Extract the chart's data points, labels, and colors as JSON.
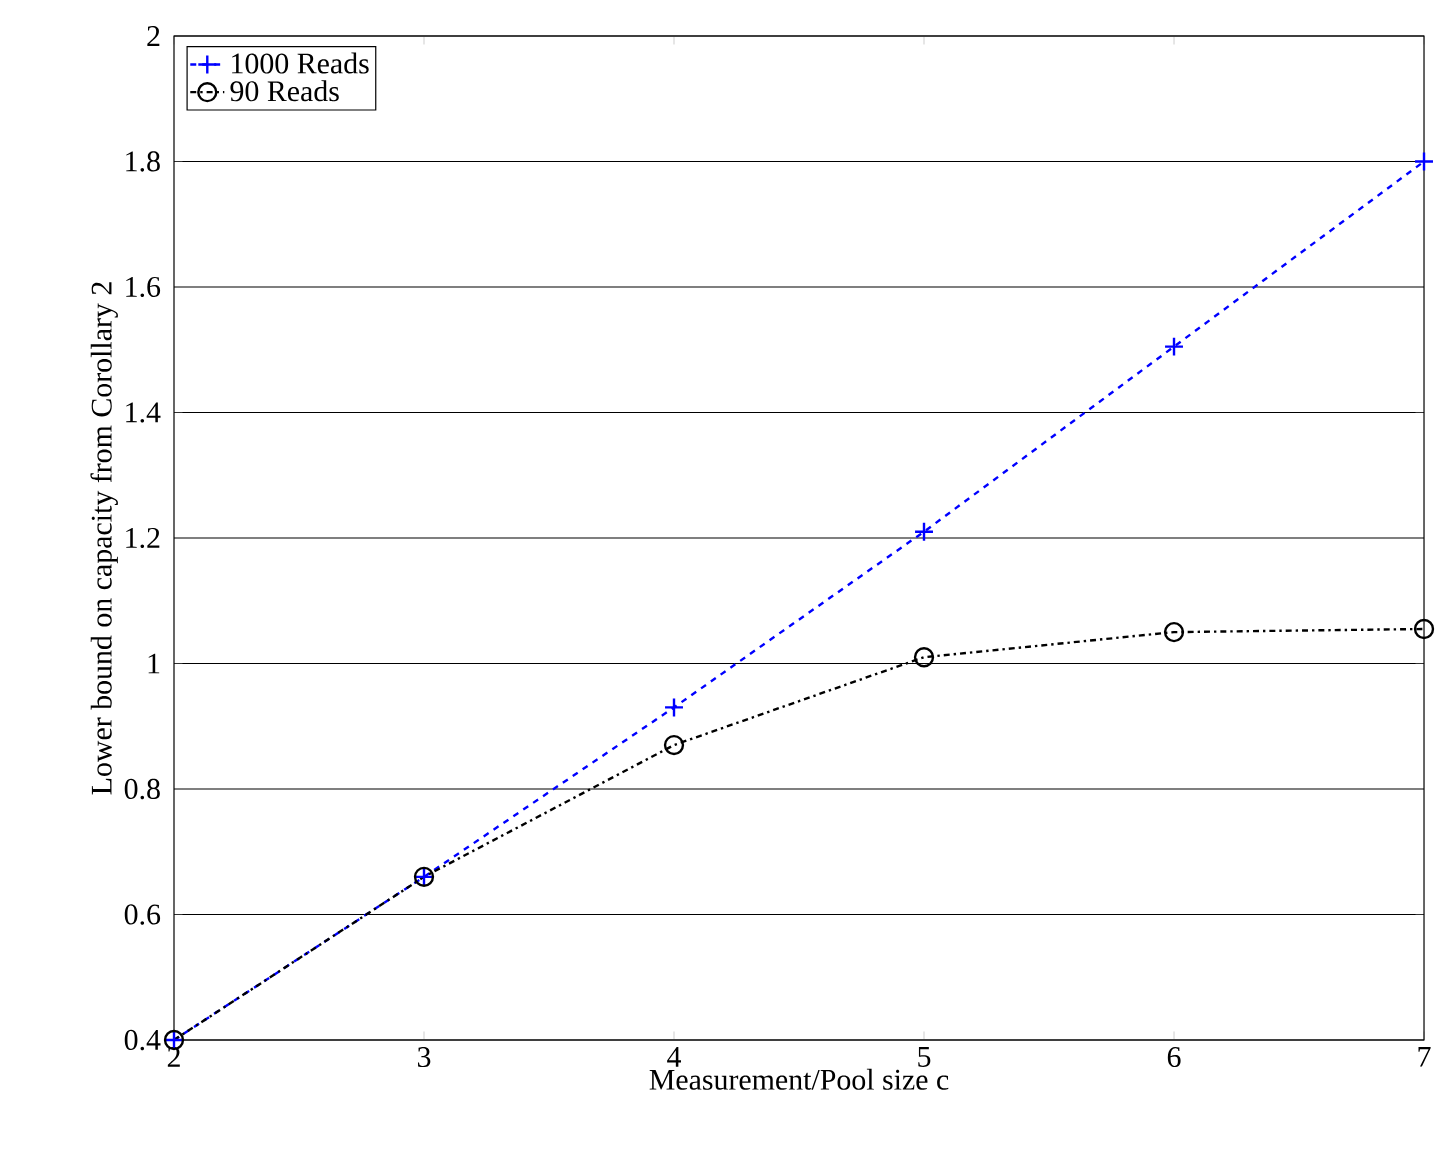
{
  "chart_data": {
    "type": "line",
    "xlabel": "Measurement/Pool size c",
    "ylabel": "Lower bound on capacity from Corollary 2",
    "x": [
      2,
      3,
      4,
      5,
      6,
      7
    ],
    "series": [
      {
        "name": "1000 Reads",
        "color": "#0000ff",
        "values": [
          0.4,
          0.66,
          0.93,
          1.21,
          1.505,
          1.8
        ],
        "marker": "cross",
        "line_style": "dashed"
      },
      {
        "name": "90 Reads",
        "color": "#000000",
        "values": [
          0.4,
          0.66,
          0.87,
          1.01,
          1.05,
          1.055
        ],
        "marker": "circle",
        "line_style": "dashdot"
      }
    ],
    "xlim": [
      2,
      7
    ],
    "ylim": [
      0.4,
      2
    ],
    "xticks": [
      2,
      3,
      4,
      5,
      6,
      7
    ],
    "yticks": [
      0.4,
      0.6,
      0.8,
      1,
      1.2,
      1.4,
      1.6,
      1.8,
      2
    ],
    "grid": "y",
    "legend": "top left"
  }
}
